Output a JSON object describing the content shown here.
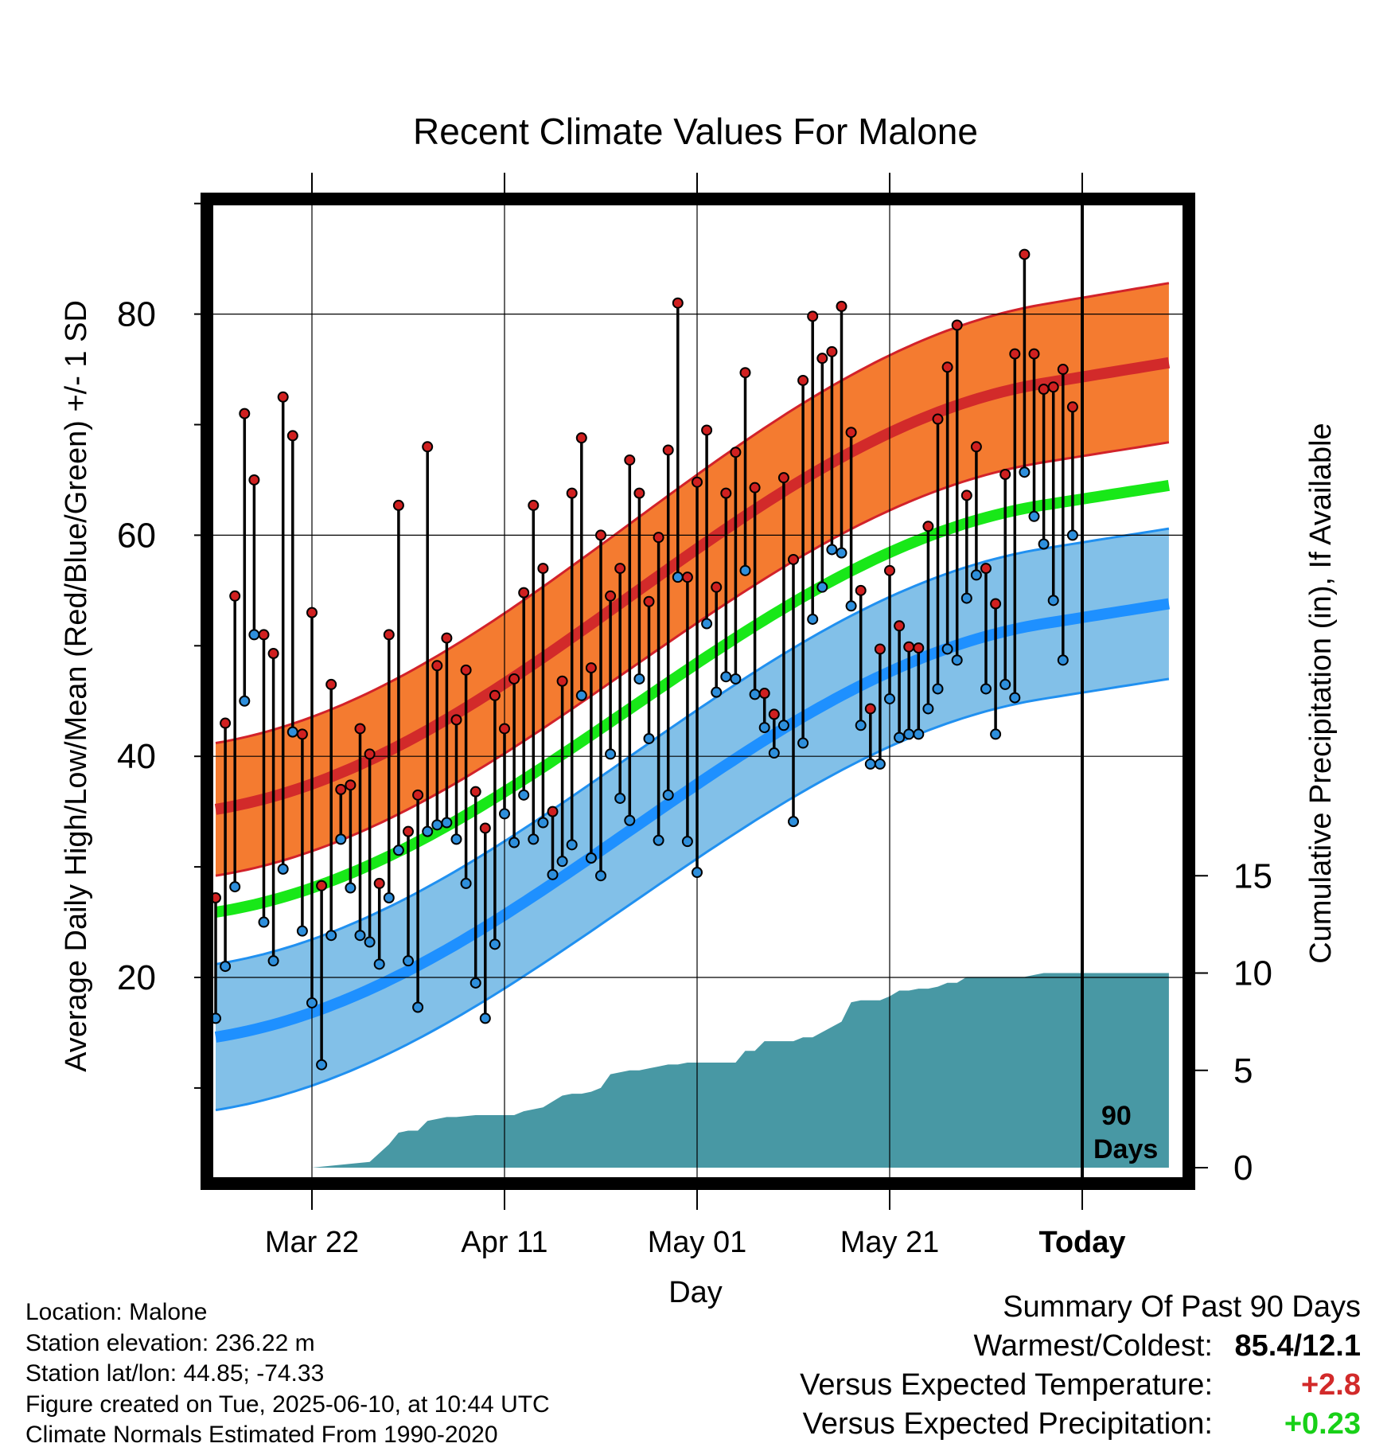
{
  "title": "Recent Climate Values For Malone",
  "colors": {
    "high_band": "#f47b30",
    "high_band_edge": "#d2222a",
    "high_mean": "#d22a2a",
    "low_band": "#82c0e8",
    "low_band_edge": "#2090f0",
    "low_mean": "#1e90ff",
    "mean_line": "#18e818",
    "precip_fill": "#4898a4",
    "high_dot": "#d02020",
    "low_dot": "#2e8fdc",
    "positive_temp": "#d22a2a",
    "positive_precip": "#18d018"
  },
  "chart_data": {
    "type": "line",
    "title": "Recent Climate Values For Malone",
    "xlabel": "Day",
    "ylabel_left": "Average Daily High/Low/Mean (Red/Blue/Green) +/- 1 SD",
    "ylabel_right": "Cumulative Precipitation (in), If Available",
    "x_tick_labels": [
      "Mar 22",
      "Apr 11",
      "May 01",
      "May 21",
      "Today"
    ],
    "x_tick_days_before_today": [
      80,
      60,
      40,
      20,
      0
    ],
    "x_range_days_before_today": [
      90,
      -9
    ],
    "y_left_ticks": [
      "20",
      "40",
      "60",
      "80"
    ],
    "y_left_tick_values": [
      20,
      40,
      60,
      80
    ],
    "y_left_range": [
      3,
      90
    ],
    "y_right_ticks": [
      "0",
      "5",
      "10",
      "15"
    ],
    "y_right_tick_values": [
      0,
      5,
      10,
      15
    ],
    "y_right_range": [
      0,
      50
    ],
    "grid": true,
    "today_label": "90 Days",
    "normals_days_before_today": [
      90,
      -9
    ],
    "normal_high_mean": [
      35.2,
      75.6
    ],
    "normal_high_sd": [
      6.0,
      7.2
    ],
    "normal_low_mean": [
      14.6,
      53.8
    ],
    "normal_low_sd": [
      6.6,
      6.8
    ],
    "normal_mean": [
      25.9,
      64.5
    ],
    "daily_highs": [
      27.2,
      43,
      54.5,
      71,
      65,
      51,
      49.3,
      72.5,
      69,
      42,
      53,
      28.3,
      46.5,
      37,
      37.4,
      42.5,
      40.2,
      28.5,
      51,
      62.7,
      33.2,
      36.5,
      68,
      48.2,
      50.7,
      43.3,
      47.8,
      36.8,
      33.5,
      45.5,
      42.5,
      47,
      54.8,
      62.7,
      57,
      35,
      46.8,
      63.8,
      68.8,
      48,
      60,
      54.5,
      57,
      66.8,
      63.8,
      54,
      59.8,
      67.7,
      81,
      56.2,
      64.8,
      69.5,
      55.3,
      63.8,
      67.5,
      74.7,
      64.3,
      45.7,
      43.8,
      65.2,
      57.8,
      74,
      79.8,
      76,
      76.6,
      80.7,
      69.3,
      55,
      44.3,
      49.7,
      56.8,
      51.8,
      49.9,
      49.8,
      60.8,
      70.5,
      75.2,
      79,
      63.6,
      68,
      57,
      53.8,
      65.5,
      76.4,
      85.4,
      76.4,
      73.2,
      73.4,
      75,
      71.6
    ],
    "daily_lows": [
      16.3,
      21,
      28.2,
      45,
      51,
      25,
      21.5,
      29.8,
      42.2,
      24.2,
      17.7,
      12.1,
      23.8,
      32.5,
      28.1,
      23.8,
      23.2,
      21.2,
      27.2,
      31.5,
      21.5,
      17.3,
      33.2,
      33.8,
      34,
      32.5,
      28.5,
      19.5,
      16.3,
      23,
      34.8,
      32.2,
      36.5,
      32.5,
      34,
      29.3,
      30.5,
      32,
      45.5,
      30.8,
      29.2,
      40.2,
      36.2,
      34.2,
      47,
      41.6,
      32.4,
      36.5,
      56.2,
      32.3,
      29.5,
      52,
      45.8,
      47.2,
      47,
      56.8,
      45.6,
      42.6,
      40.3,
      42.8,
      34.1,
      41.2,
      52.4,
      55.3,
      58.7,
      58.4,
      53.6,
      42.8,
      39.3,
      39.3,
      45.2,
      41.7,
      42,
      42,
      44.3,
      46.1,
      49.7,
      48.7,
      54.3,
      56.4,
      46.1,
      42,
      46.5,
      45.3,
      65.7,
      61.7,
      59.2,
      54.1,
      48.7,
      60
    ]
  },
  "precip_profile": {
    "days_before_today": [
      90,
      80,
      76,
      74,
      72,
      71,
      70,
      69,
      68,
      66,
      65,
      63,
      61,
      60,
      59,
      58,
      56,
      55,
      54,
      53,
      52,
      51,
      50,
      49,
      47,
      46,
      45,
      44,
      43,
      42,
      41,
      40,
      36,
      35,
      34,
      33,
      30,
      29,
      28,
      25,
      24,
      23,
      21,
      20,
      19,
      18,
      17,
      16,
      15,
      14,
      13,
      12,
      11,
      10,
      8,
      7,
      6,
      5,
      4,
      2,
      1,
      0,
      -9
    ],
    "cumulative_in": [
      0,
      0,
      0.2,
      0.3,
      1.2,
      1.8,
      1.9,
      1.9,
      2.4,
      2.6,
      2.6,
      2.7,
      2.7,
      2.7,
      2.7,
      2.9,
      3.1,
      3.4,
      3.7,
      3.8,
      3.8,
      3.9,
      4.1,
      4.8,
      5.0,
      5.0,
      5.1,
      5.2,
      5.3,
      5.3,
      5.4,
      5.4,
      5.4,
      6.0,
      6.0,
      6.5,
      6.5,
      6.7,
      6.7,
      7.5,
      8.5,
      8.6,
      8.6,
      8.8,
      9.1,
      9.1,
      9.2,
      9.2,
      9.3,
      9.5,
      9.5,
      9.8,
      9.8,
      9.8,
      9.8,
      9.8,
      9.8,
      9.9,
      10.0,
      10.0,
      10.0,
      10.0,
      10.0
    ]
  },
  "info": {
    "location": "Location: Malone",
    "elevation": "Station elevation: 236.22 m",
    "latlon": "Station lat/lon: 44.85; -74.33",
    "created": "Figure created on Tue, 2025-06-10, at 10:44 UTC",
    "normals": "Climate Normals Estimated From 1990-2020"
  },
  "summary": {
    "heading": "Summary Of Past 90 Days",
    "warmest_coldest_label": "Warmest/Coldest:",
    "warmest_coldest_value": "85.4/12.1",
    "temp_label": "Versus Expected Temperature:",
    "temp_value": "+2.8",
    "precip_label": "Versus Expected Precipitation:",
    "precip_value": "+0.23"
  }
}
